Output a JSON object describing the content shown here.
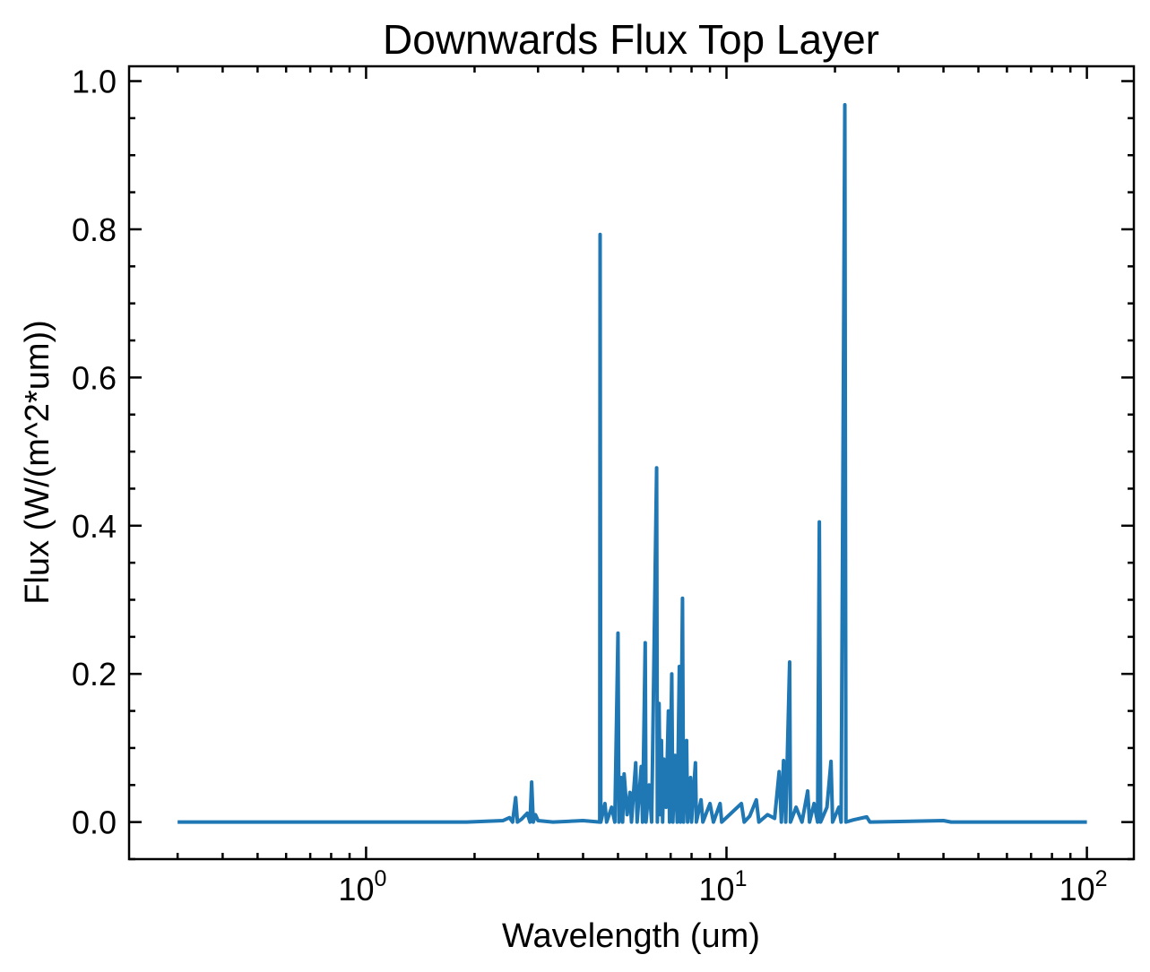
{
  "chart_data": {
    "type": "line",
    "title": "Downwards Flux Top Layer",
    "xlabel": "Wavelength (um)",
    "ylabel": "Flux (W/(m^2*um))",
    "x_scale": "log",
    "xlim": [
      0.22,
      135
    ],
    "ylim": [
      -0.05,
      1.02
    ],
    "x_ticks": [
      {
        "value": 1,
        "base": "10",
        "exp": "0"
      },
      {
        "value": 10,
        "base": "10",
        "exp": "1"
      },
      {
        "value": 100,
        "base": "10",
        "exp": "2"
      }
    ],
    "y_ticks": [
      {
        "value": 0.0,
        "label": "0.0"
      },
      {
        "value": 0.2,
        "label": "0.2"
      },
      {
        "value": 0.4,
        "label": "0.4"
      },
      {
        "value": 0.6,
        "label": "0.6"
      },
      {
        "value": 0.8,
        "label": "0.8"
      },
      {
        "value": 1.0,
        "label": "1.0"
      }
    ],
    "grid": false,
    "legend": "none",
    "series": [
      {
        "color": "#1f77b4",
        "points": [
          [
            0.3,
            0.0
          ],
          [
            1.9,
            0.0
          ],
          [
            2.4,
            0.002
          ],
          [
            2.5,
            0.006
          ],
          [
            2.55,
            0.0
          ],
          [
            2.6,
            0.033
          ],
          [
            2.63,
            0.0
          ],
          [
            2.7,
            0.004
          ],
          [
            2.8,
            0.012
          ],
          [
            2.85,
            0.0
          ],
          [
            2.88,
            0.054
          ],
          [
            2.91,
            0.0
          ],
          [
            2.95,
            0.01
          ],
          [
            3.0,
            0.002
          ],
          [
            3.3,
            0.0
          ],
          [
            4.0,
            0.002
          ],
          [
            4.45,
            0.0
          ],
          [
            4.46,
            0.793
          ],
          [
            4.48,
            0.0
          ],
          [
            4.6,
            0.025
          ],
          [
            4.65,
            0.0
          ],
          [
            4.8,
            0.02
          ],
          [
            4.9,
            0.0
          ],
          [
            5.0,
            0.255
          ],
          [
            5.03,
            0.0
          ],
          [
            5.1,
            0.06
          ],
          [
            5.15,
            0.0
          ],
          [
            5.2,
            0.065
          ],
          [
            5.3,
            0.01
          ],
          [
            5.4,
            0.04
          ],
          [
            5.45,
            0.0
          ],
          [
            5.6,
            0.08
          ],
          [
            5.65,
            0.0
          ],
          [
            5.8,
            0.075
          ],
          [
            5.85,
            0.0
          ],
          [
            5.95,
            0.242
          ],
          [
            5.98,
            0.0
          ],
          [
            6.1,
            0.05
          ],
          [
            6.2,
            0.0
          ],
          [
            6.4,
            0.478
          ],
          [
            6.43,
            0.0
          ],
          [
            6.5,
            0.16
          ],
          [
            6.55,
            0.01
          ],
          [
            6.6,
            0.11
          ],
          [
            6.65,
            0.0
          ],
          [
            6.7,
            0.085
          ],
          [
            6.8,
            0.02
          ],
          [
            6.9,
            0.15
          ],
          [
            6.95,
            0.0
          ],
          [
            7.05,
            0.2
          ],
          [
            7.1,
            0.0
          ],
          [
            7.2,
            0.09
          ],
          [
            7.3,
            0.0
          ],
          [
            7.4,
            0.21
          ],
          [
            7.45,
            0.0
          ],
          [
            7.55,
            0.302
          ],
          [
            7.6,
            0.0
          ],
          [
            7.75,
            0.11
          ],
          [
            7.8,
            0.0
          ],
          [
            7.95,
            0.06
          ],
          [
            8.0,
            0.0
          ],
          [
            8.2,
            0.08
          ],
          [
            8.25,
            0.0
          ],
          [
            8.5,
            0.03
          ],
          [
            8.6,
            0.0
          ],
          [
            9.0,
            0.025
          ],
          [
            9.2,
            0.0
          ],
          [
            9.6,
            0.025
          ],
          [
            9.7,
            0.0
          ],
          [
            10.2,
            0.01
          ],
          [
            11.0,
            0.025
          ],
          [
            11.2,
            0.0
          ],
          [
            11.6,
            0.008
          ],
          [
            12.1,
            0.03
          ],
          [
            12.3,
            0.0
          ],
          [
            13.0,
            0.01
          ],
          [
            13.6,
            0.005
          ],
          [
            14.0,
            0.068
          ],
          [
            14.2,
            0.0
          ],
          [
            14.4,
            0.083
          ],
          [
            14.6,
            0.0
          ],
          [
            14.97,
            0.216
          ],
          [
            15.05,
            0.0
          ],
          [
            15.6,
            0.02
          ],
          [
            16.2,
            0.0
          ],
          [
            16.8,
            0.042
          ],
          [
            17.0,
            0.0
          ],
          [
            17.5,
            0.025
          ],
          [
            17.9,
            0.0
          ],
          [
            18.1,
            0.405
          ],
          [
            18.25,
            0.0
          ],
          [
            19.0,
            0.02
          ],
          [
            19.5,
            0.082
          ],
          [
            19.7,
            0.0
          ],
          [
            20.5,
            0.02
          ],
          [
            20.8,
            0.0
          ],
          [
            21.3,
            0.968
          ],
          [
            21.45,
            0.0
          ],
          [
            22.5,
            0.003
          ],
          [
            24.5,
            0.007
          ],
          [
            25.0,
            0.0
          ],
          [
            40.0,
            0.002
          ],
          [
            42.0,
            0.0
          ],
          [
            100.0,
            0.0
          ]
        ]
      }
    ]
  }
}
